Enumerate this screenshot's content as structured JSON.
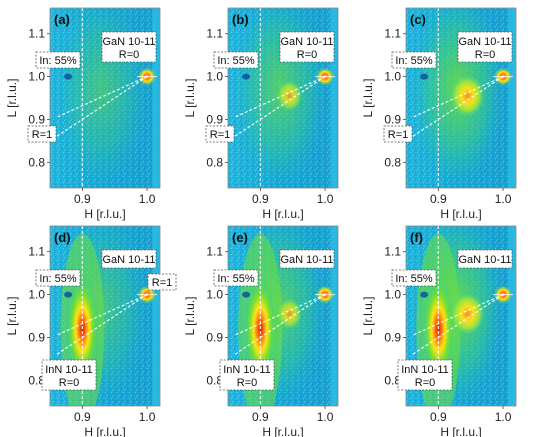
{
  "panels": [
    {
      "id": "a",
      "letter": "(a)",
      "peak": "GaN 10-11",
      "peak_sub": "R=0",
      "in_label": "In: 55%",
      "r_label": "R=1",
      "bottom_peak": "",
      "bottom_sub": "",
      "ingan_peak": 0.0,
      "inn_peak": 0.0
    },
    {
      "id": "b",
      "letter": "(b)",
      "peak": "GaN 10-11",
      "peak_sub": "R=0",
      "in_label": "In: 55%",
      "r_label": "R=1",
      "bottom_peak": "",
      "bottom_sub": "",
      "ingan_peak": 0.45,
      "inn_peak": 0.0
    },
    {
      "id": "c",
      "letter": "(c)",
      "peak": "GaN 10-11",
      "peak_sub": "R=0",
      "in_label": "In: 55%",
      "r_label": "R=1",
      "bottom_peak": "",
      "bottom_sub": "",
      "ingan_peak": 0.9,
      "inn_peak": 0.0
    },
    {
      "id": "d",
      "letter": "(d)",
      "peak": "GaN 10-11",
      "peak_sub": "",
      "in_label": "In: 55%",
      "r_label": "R=1",
      "bottom_peak": "InN 10-11",
      "bottom_sub": "R=0",
      "ingan_peak": 0.0,
      "inn_peak": 1.0
    },
    {
      "id": "e",
      "letter": "(e)",
      "peak": "GaN 10-11",
      "peak_sub": "",
      "in_label": "In: 55%",
      "r_label": "",
      "bottom_peak": "InN 10-11",
      "bottom_sub": "R=0",
      "ingan_peak": 0.45,
      "inn_peak": 1.0
    },
    {
      "id": "f",
      "letter": "(f)",
      "peak": "GaN 10-11",
      "peak_sub": "",
      "in_label": "In: 55%",
      "r_label": "",
      "bottom_peak": "InN 10-11",
      "bottom_sub": "R=0",
      "ingan_peak": 0.9,
      "inn_peak": 1.0
    }
  ],
  "chart_data": {
    "type": "heatmap",
    "xlabel": "H [r.l.u.]",
    "ylabel": "L [r.l.u.]",
    "x_ticks": [
      "0.9",
      "1.0"
    ],
    "y_ticks": [
      "0.8",
      "0.9",
      "1.0",
      "1.1"
    ],
    "xlim": [
      0.85,
      1.02
    ],
    "ylim": [
      0.74,
      1.16
    ],
    "gan_peak": {
      "H": 1.0,
      "L": 1.0
    },
    "inn_peak": {
      "H": 0.9,
      "L": 0.92
    },
    "ingan_peak": {
      "H": 0.945,
      "L": 0.955
    },
    "in55_line": {
      "H": 0.9
    },
    "colors": {
      "background": "#18b0d8",
      "low": "#2bd09a",
      "mid": "#7be02a",
      "high": "#ffe21a",
      "peak": "#ff7a10",
      "max": "#d11a10"
    }
  }
}
